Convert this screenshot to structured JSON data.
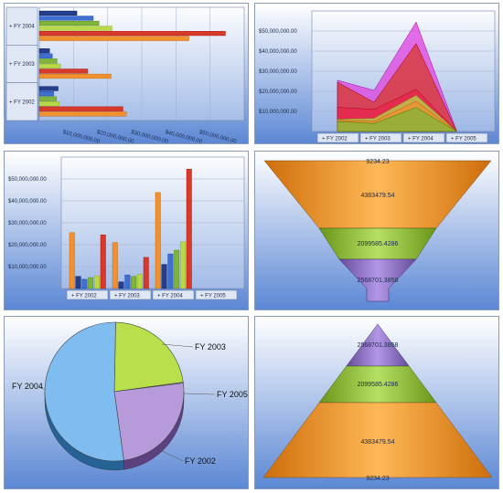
{
  "colors": {
    "panel_top": "#ffffff",
    "panel_bottom": "#5a86d4",
    "orange": "#f0902e",
    "red": "#d73a2a",
    "green": "#7fb43a",
    "yellowgreen": "#b9d94a",
    "navy": "#233f8c",
    "blue": "#3f6fd1",
    "purple": "#8a6fbf",
    "magenta": "#e040e0",
    "crimson": "#e8244e",
    "lightblue": "#7fbcef",
    "lightpurple": "#b79ad9"
  },
  "chart_data": [
    {
      "type": "bar",
      "orientation": "horizontal",
      "categories": [
        "FY 2002",
        "FY 2003",
        "FY 2004"
      ],
      "category_labels": [
        "+ FY 2002",
        "+ FY 2003",
        "+ FY 2004"
      ],
      "series": [
        {
          "color": "#f0902e",
          "values": [
            25500000,
            21000000,
            43800000
          ]
        },
        {
          "color": "#d73a2a",
          "values": [
            24500000,
            14200000,
            54500000
          ]
        },
        {
          "color": "#b9d94a",
          "values": [
            5800000,
            6200000,
            21300000
          ]
        },
        {
          "color": "#7fb43a",
          "values": [
            5000000,
            5200000,
            17500000
          ]
        },
        {
          "color": "#3f6fd1",
          "values": [
            4200000,
            3800000,
            15800000
          ]
        },
        {
          "color": "#233f8c",
          "values": [
            5500000,
            3000000,
            11000000
          ]
        }
      ],
      "xticks": [
        "$10,000,000.00",
        "$20,000,000.00",
        "$30,000,000.00",
        "$40,000,000.00",
        "$50,000,000.00"
      ],
      "xlim": [
        0,
        60000000
      ]
    },
    {
      "type": "area",
      "categories": [
        "FY 2002",
        "FY 2003",
        "FY 2004",
        "FY 2005"
      ],
      "category_labels": [
        "+ FY 2002",
        "+ FY 2003",
        "+ FY 2004",
        "+ FY 2005"
      ],
      "series": [
        {
          "color": "#e040e0",
          "values": [
            25500000,
            20500000,
            54500000,
            500000
          ]
        },
        {
          "color": "#d73a2a",
          "values": [
            24500000,
            14500000,
            43800000,
            400000
          ]
        },
        {
          "color": "#e8244e",
          "values": [
            12000000,
            11000000,
            21000000,
            300000
          ]
        },
        {
          "color": "#b9d94a",
          "values": [
            6000000,
            6500000,
            18000000,
            200000
          ]
        },
        {
          "color": "#f0902e",
          "values": [
            5500000,
            5000000,
            15000000,
            150000
          ]
        },
        {
          "color": "#7fb43a",
          "values": [
            5000000,
            4000000,
            12000000,
            100000
          ]
        }
      ],
      "yticks": [
        "$10,000,000.00",
        "$20,000,000.00",
        "$30,000,000.00",
        "$40,000,000.00",
        "$50,000,000.00"
      ],
      "ylim": [
        0,
        60000000
      ]
    },
    {
      "type": "bar",
      "orientation": "vertical",
      "categories": [
        "FY 2002",
        "FY 2003",
        "FY 2004",
        "FY 2005"
      ],
      "category_labels": [
        "+ FY 2002",
        "+ FY 2003",
        "+ FY 2004",
        "+ FY 2005"
      ],
      "series": [
        {
          "color": "#f0902e",
          "values": [
            25500000,
            21000000,
            43800000,
            0
          ]
        },
        {
          "color": "#233f8c",
          "values": [
            5500000,
            3000000,
            11000000,
            0
          ]
        },
        {
          "color": "#3f6fd1",
          "values": [
            4200000,
            6200000,
            15800000,
            0
          ]
        },
        {
          "color": "#7fb43a",
          "values": [
            5000000,
            5500000,
            17500000,
            0
          ]
        },
        {
          "color": "#b9d94a",
          "values": [
            5800000,
            6500000,
            21300000,
            0
          ]
        },
        {
          "color": "#d73a2a",
          "values": [
            24500000,
            14200000,
            54500000,
            0
          ]
        }
      ],
      "yticks": [
        "$10,000,000.00",
        "$20,000,000.00",
        "$30,000,000.00",
        "$40,000,000.00",
        "$50,000,000.00"
      ],
      "ylim": [
        0,
        60000000
      ]
    },
    {
      "type": "funnel",
      "segments": [
        {
          "label": "9234.23",
          "value": 9234.23,
          "color": "#f0902e"
        },
        {
          "label": "4383479.54",
          "value": 4383479.54,
          "color": "#f0902e"
        },
        {
          "label": "2099585.4286",
          "value": 2099585.4286,
          "color": "#8db83c"
        },
        {
          "label": "2568701.3858",
          "value": 2568701.3858,
          "color": "#8a6fbf"
        }
      ]
    },
    {
      "type": "pie",
      "slices": [
        {
          "label": "FY 2003",
          "value": 22.5,
          "color": "#b9e04a"
        },
        {
          "label": "FY 2005",
          "value": 0.2,
          "color": "#9fb4e6"
        },
        {
          "label": "FY 2002",
          "value": 24.8,
          "color": "#b79ad9"
        },
        {
          "label": "FY 2004",
          "value": 52.5,
          "color": "#7fbcef"
        }
      ]
    },
    {
      "type": "pyramid",
      "segments": [
        {
          "label": "2568701.3858",
          "value": 2568701.3858,
          "color": "#8a6fbf"
        },
        {
          "label": "2099585.4286",
          "value": 2099585.4286,
          "color": "#8db83c"
        },
        {
          "label": "4383479.54",
          "value": 4383479.54,
          "color": "#f0902e"
        },
        {
          "label": "9234.23",
          "value": 9234.23,
          "color": "#f0902e"
        }
      ]
    }
  ]
}
